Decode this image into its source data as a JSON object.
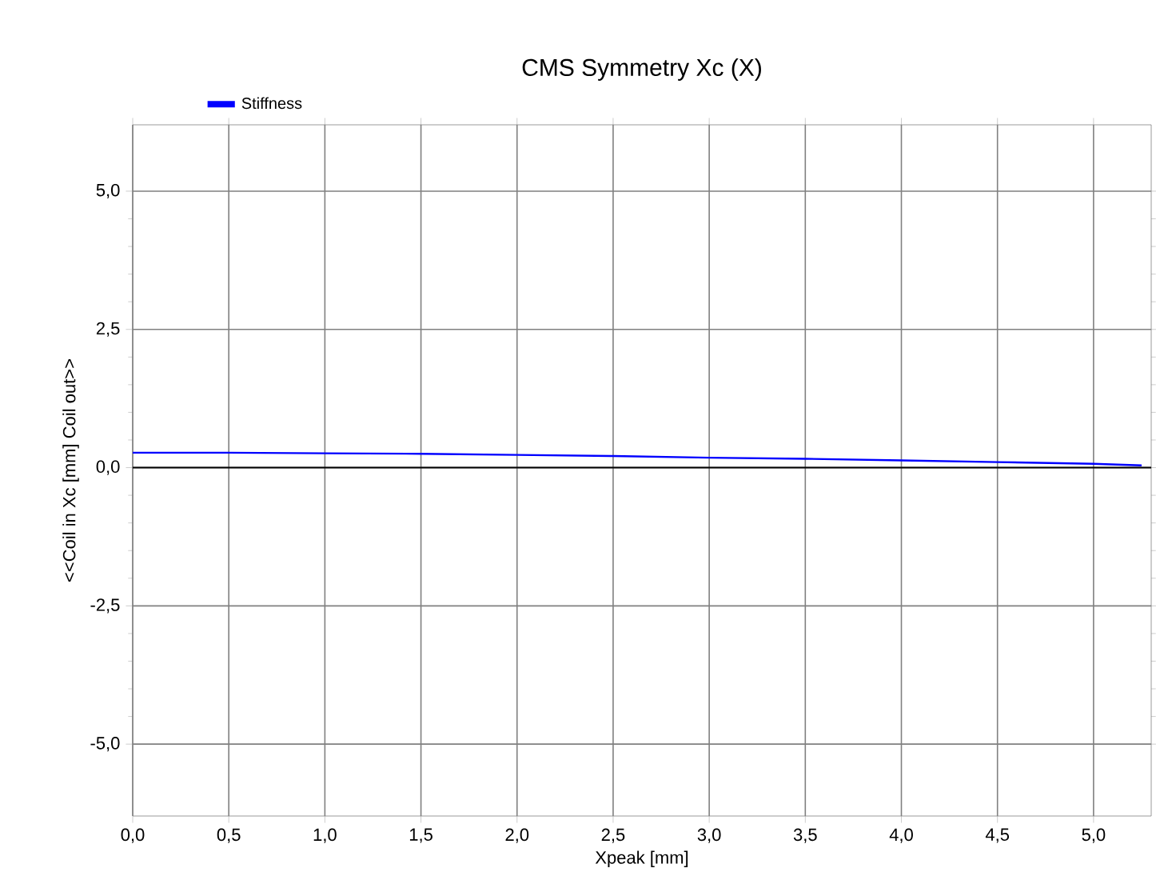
{
  "chart_data": {
    "type": "line",
    "title": "CMS Symmetry Xc (X)",
    "xlabel": "Xpeak [mm]",
    "ylabel": "<<Coil in     Xc [mm]     Coil out>>",
    "x": [
      0,
      0.5,
      1.0,
      1.5,
      2.0,
      2.5,
      3.0,
      3.5,
      4.0,
      4.5,
      5.0,
      5.25
    ],
    "series": [
      {
        "name": "Stiffness",
        "color": "#0000ff",
        "values": [
          0.27,
          0.27,
          0.26,
          0.25,
          0.23,
          0.21,
          0.18,
          0.16,
          0.13,
          0.1,
          0.07,
          0.04
        ]
      }
    ],
    "xlim": [
      0,
      5.3
    ],
    "ylim": [
      -6.3,
      6.2
    ],
    "xticks": [
      {
        "value": 0,
        "label": "0,0"
      },
      {
        "value": 0.5,
        "label": "0,5"
      },
      {
        "value": 1.0,
        "label": "1,0"
      },
      {
        "value": 1.5,
        "label": "1,5"
      },
      {
        "value": 2.0,
        "label": "2,0"
      },
      {
        "value": 2.5,
        "label": "2,5"
      },
      {
        "value": 3.0,
        "label": "3,0"
      },
      {
        "value": 3.5,
        "label": "3,5"
      },
      {
        "value": 4.0,
        "label": "4,0"
      },
      {
        "value": 4.5,
        "label": "4,5"
      },
      {
        "value": 5.0,
        "label": "5,0"
      }
    ],
    "yticks": [
      {
        "value": -5.0,
        "label": "-5,0"
      },
      {
        "value": -2.5,
        "label": "-2,5"
      },
      {
        "value": 0,
        "label": "0,0"
      },
      {
        "value": 2.5,
        "label": "2,5"
      },
      {
        "value": 5.0,
        "label": "5,0"
      }
    ],
    "ref_lines": [
      {
        "axis": "y",
        "value": 0,
        "color": "#000000"
      }
    ],
    "grid": true,
    "legend": "top left",
    "marker": "none",
    "line_style": "solid"
  }
}
